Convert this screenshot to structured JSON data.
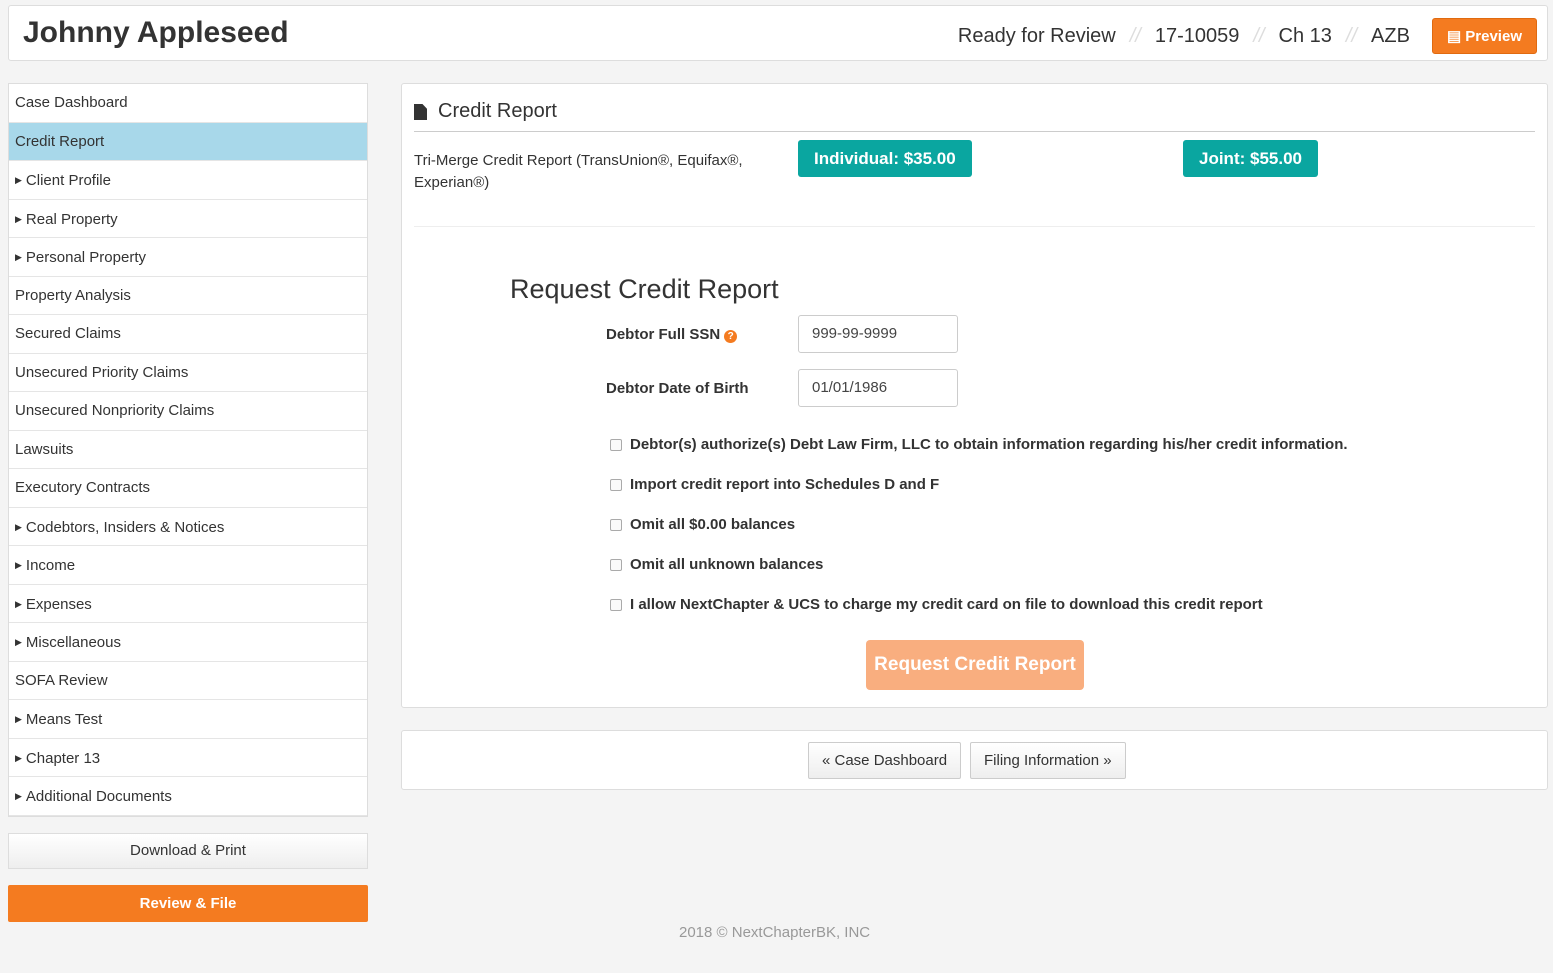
{
  "header": {
    "title": "Johnny Appleseed",
    "status": "Ready for Review",
    "case_number": "17-10059",
    "chapter": "Ch 13",
    "district": "AZB",
    "preview_label": "Preview"
  },
  "sidebar": {
    "items": [
      {
        "label": "Case Dashboard",
        "caret": false
      },
      {
        "label": "Credit Report",
        "caret": false,
        "active": true
      },
      {
        "label": "Client Profile",
        "caret": true
      },
      {
        "label": "Real Property",
        "caret": true
      },
      {
        "label": "Personal Property",
        "caret": true
      },
      {
        "label": "Property Analysis",
        "caret": false
      },
      {
        "label": "Secured Claims",
        "caret": false
      },
      {
        "label": "Unsecured Priority Claims",
        "caret": false
      },
      {
        "label": "Unsecured Nonpriority Claims",
        "caret": false
      },
      {
        "label": "Lawsuits",
        "caret": false
      },
      {
        "label": "Executory Contracts",
        "caret": false
      },
      {
        "label": "Codebtors, Insiders & Notices",
        "caret": true
      },
      {
        "label": "Income",
        "caret": true
      },
      {
        "label": "Expenses",
        "caret": true
      },
      {
        "label": "Miscellaneous",
        "caret": true
      },
      {
        "label": "SOFA Review",
        "caret": false
      },
      {
        "label": "Means Test",
        "caret": true
      },
      {
        "label": "Chapter 13",
        "caret": true
      },
      {
        "label": "Additional Documents",
        "caret": true
      }
    ],
    "download_label": "Download & Print",
    "review_label": "Review & File"
  },
  "panel": {
    "title": "Credit Report",
    "description": "Tri-Merge Credit Report (TransUnion®, Equifax®, Experian®)",
    "individual_label": "Individual: $35.00",
    "joint_label": "Joint: $55.00",
    "form_title": "Request Credit Report",
    "ssn_label": "Debtor Full SSN",
    "ssn_value": "999-99-9999",
    "dob_label": "Debtor Date of Birth",
    "dob_value": "01/01/1986",
    "checkboxes": [
      "Debtor(s) authorize(s) Debt Law Firm, LLC to obtain information regarding his/her credit information.",
      "Import credit report into Schedules D and F",
      "Omit all $0.00 balances",
      "Omit all unknown balances",
      "I allow NextChapter & UCS to charge my credit card on file to download this credit report"
    ],
    "request_label": "Request Credit Report"
  },
  "nav": {
    "prev_label": "« Case Dashboard",
    "next_label": "Filing Information »"
  },
  "footer": "2018 © NextChapterBK, INC",
  "colors": {
    "accent": "#f47b20",
    "teal": "#0aa6a0",
    "active": "#a8d8ea"
  }
}
